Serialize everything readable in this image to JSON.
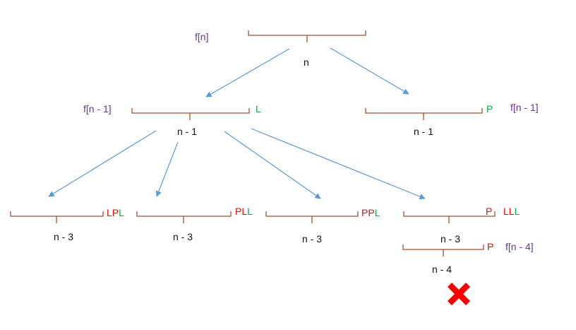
{
  "colors": {
    "brace": "#a0522d",
    "arrow": "#5b9bd5",
    "label_purple": "#7030a0",
    "letter_L": "#00b050",
    "letter_P": "#ff0000",
    "cross": "#ff0000"
  },
  "root": {
    "func": "f[n]",
    "n": "n"
  },
  "level1": {
    "left": {
      "func": "f[n - 1]",
      "n": "n - 1",
      "tag": "L"
    },
    "right": {
      "func": "f[n - 1]",
      "n": "n - 1",
      "tag": "P"
    }
  },
  "level2": [
    {
      "n": "n - 3",
      "tag": [
        {
          "ch": "L",
          "c": "red"
        },
        {
          "ch": "P",
          "c": "red"
        },
        {
          "ch": "L",
          "c": "green"
        }
      ]
    },
    {
      "n": "n - 3",
      "tag": [
        {
          "ch": "P",
          "c": "red"
        },
        {
          "ch": "L",
          "c": "red"
        },
        {
          "ch": "L",
          "c": "green"
        }
      ]
    },
    {
      "n": "n - 3",
      "tag": [
        {
          "ch": "P",
          "c": "red"
        },
        {
          "ch": "P",
          "c": "red"
        },
        {
          "ch": "L",
          "c": "green"
        }
      ]
    },
    {
      "n": "n - 3",
      "p_tag": "P",
      "tag": [
        {
          "ch": "L",
          "c": "red"
        },
        {
          "ch": "L",
          "c": "red"
        },
        {
          "ch": "L",
          "c": "green"
        }
      ]
    }
  ],
  "level3": {
    "n": "n - 4",
    "tag": "P",
    "func": "f[n - 4]"
  },
  "cross_icon": "red-x-icon"
}
